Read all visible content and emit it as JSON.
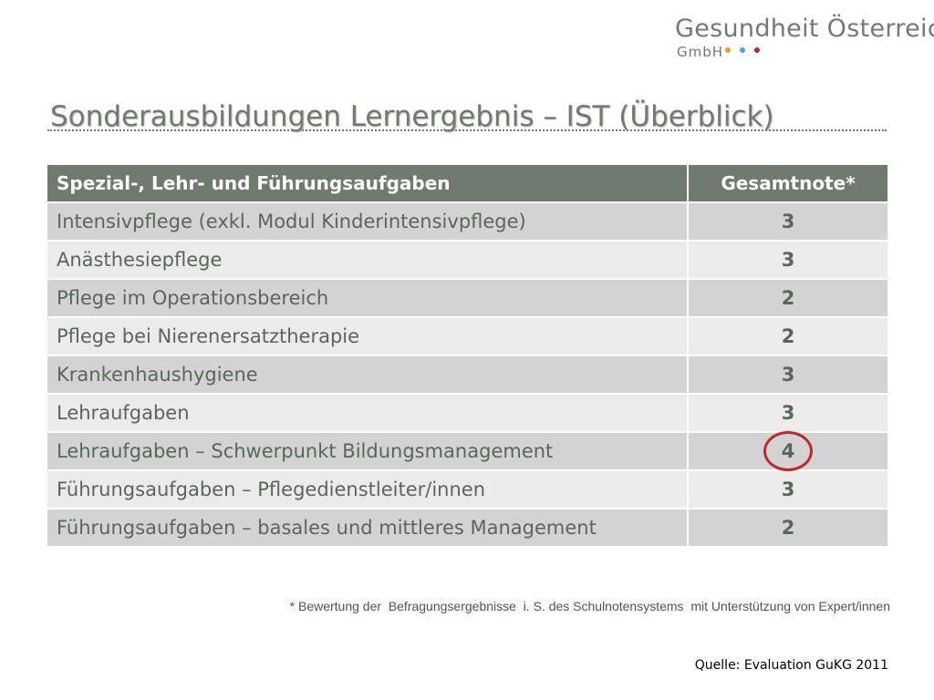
{
  "logo": {
    "name": "Gesundheit Österreich",
    "legal_form": "GmbH",
    "dot_colors": [
      "#e8a030",
      "#4aa0d8",
      "#c0272d"
    ]
  },
  "title": "Sonderausbildungen Lernergebnis – IST (Überblick)",
  "table": {
    "headers": {
      "category": "Spezial-, Lehr- und Führungsaufgaben",
      "grade": "Gesamtnote*"
    },
    "rows": [
      {
        "category": "Intensivpflege (exkl. Modul Kinderintensivpflege)",
        "grade": "3"
      },
      {
        "category": "Anästhesiepflege",
        "grade": "3"
      },
      {
        "category": "Pflege im Operationsbereich",
        "grade": "2"
      },
      {
        "category": "Pflege bei Nierenersatztherapie",
        "grade": "2"
      },
      {
        "category": "Krankenhaushygiene",
        "grade": "3"
      },
      {
        "category": "Lehraufgaben",
        "grade": "3"
      },
      {
        "category": "Lehraufgaben – Schwerpunkt Bildungsmanagement",
        "grade": "4",
        "highlighted": true
      },
      {
        "category": "Führungsaufgaben – Pflegedienstleiter/innen",
        "grade": "3"
      },
      {
        "category": "Führungsaufgaben – basales und mittleres Management",
        "grade": "2"
      }
    ]
  },
  "footnote": "* Bewertung der  Befragungsergebnisse  i. S. des Schulnotensystems  mit Unterstützung von Expert/innen",
  "source": "Quelle: Evaluation GuKG 2011",
  "colors": {
    "header_bg": "#6e7b6d",
    "row_dark": "#d3d3d3",
    "row_light": "#ebebeb",
    "highlight": "#c0272d"
  }
}
